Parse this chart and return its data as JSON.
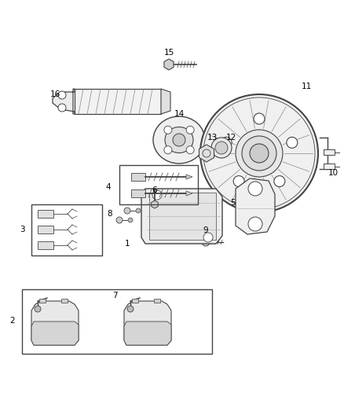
{
  "background_color": "#ffffff",
  "fig_width": 4.38,
  "fig_height": 5.33,
  "dpi": 100,
  "line_color": "#444444",
  "label_color": "#000000",
  "label_fontsize": 7.5
}
